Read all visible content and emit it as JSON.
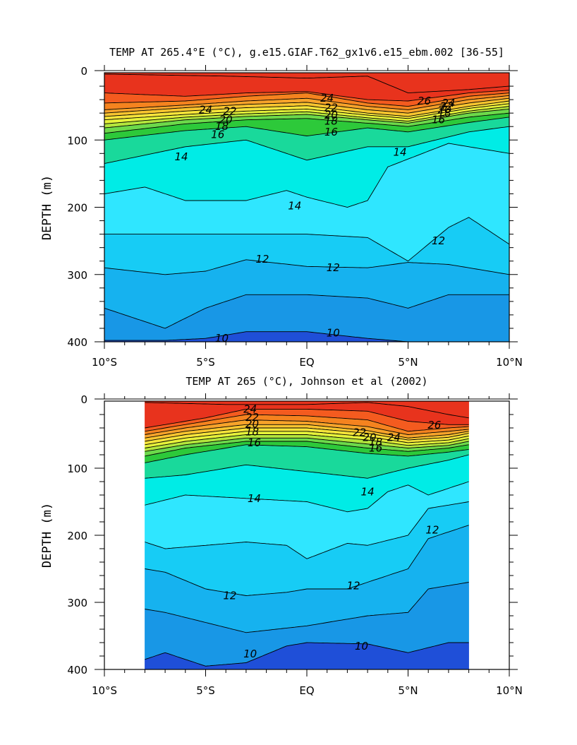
{
  "chart_data": [
    {
      "type": "contour",
      "title": "TEMP AT 265.4°E (°C), g.e15.GIAF.T62_gx1v6.e15_ebm.002 [36-55]",
      "xlabel": "",
      "ylabel": "DEPTH (m)",
      "x_tick_labels": [
        "10°S",
        "5°S",
        "EQ",
        "5°N",
        "10°N"
      ],
      "x_ticks": [
        -10,
        -5,
        0,
        5,
        10
      ],
      "y_tick_labels": [
        "0",
        "100",
        "200",
        "300",
        "400"
      ],
      "y_ticks": [
        0,
        100,
        200,
        300,
        400
      ],
      "xlim": [
        -10,
        10
      ],
      "ylim": [
        400,
        0
      ],
      "data_xlim": [
        -10,
        10
      ],
      "contour_interval": 1,
      "contour_labels": [
        "24",
        "22",
        "20",
        "18",
        "16",
        "14",
        "14",
        "12",
        "12",
        "12",
        "10",
        "10",
        "24",
        "22",
        "20",
        "18",
        "16",
        "26",
        "24",
        "22",
        "20",
        "18",
        "16",
        "14"
      ],
      "isotherms": [
        {
          "value": 26,
          "x": [
            -10,
            -4,
            0,
            3,
            5,
            8,
            10
          ],
          "depth": [
            2,
            5,
            8,
            5,
            30,
            25,
            20
          ]
        },
        {
          "value": 25,
          "x": [
            -10,
            -6,
            -3,
            0,
            3,
            5,
            8,
            10
          ],
          "depth": [
            30,
            35,
            30,
            28,
            40,
            42,
            30,
            26
          ]
        },
        {
          "value": 24,
          "x": [
            -10,
            -6,
            -3,
            0,
            3,
            5,
            8,
            10
          ],
          "depth": [
            45,
            42,
            35,
            30,
            45,
            50,
            35,
            30
          ]
        },
        {
          "value": 23,
          "x": [
            -10,
            -6,
            -3,
            0,
            3,
            5,
            8,
            10
          ],
          "depth": [
            55,
            48,
            42,
            38,
            50,
            55,
            40,
            34
          ]
        },
        {
          "value": 22,
          "x": [
            -10,
            -6,
            -3,
            0,
            3,
            5,
            8,
            10
          ],
          "depth": [
            60,
            52,
            47,
            44,
            55,
            60,
            45,
            38
          ]
        },
        {
          "value": 21,
          "x": [
            -10,
            -6,
            -3,
            0,
            3,
            5,
            8,
            10
          ],
          "depth": [
            65,
            57,
            52,
            49,
            60,
            65,
            50,
            42
          ]
        },
        {
          "value": 20,
          "x": [
            -10,
            -6,
            -3,
            0,
            3,
            5,
            8,
            10
          ],
          "depth": [
            70,
            62,
            57,
            54,
            63,
            68,
            53,
            46
          ]
        },
        {
          "value": 19,
          "x": [
            -10,
            -6,
            -3,
            0,
            3,
            5,
            8,
            10
          ],
          "depth": [
            76,
            66,
            61,
            58,
            67,
            72,
            57,
            50
          ]
        },
        {
          "value": 18,
          "x": [
            -10,
            -6,
            -3,
            0,
            3,
            5,
            8,
            10
          ],
          "depth": [
            82,
            70,
            65,
            62,
            70,
            75,
            60,
            54
          ]
        },
        {
          "value": 17,
          "x": [
            -10,
            -6,
            -3,
            0,
            3,
            5,
            8,
            10
          ],
          "depth": [
            90,
            76,
            70,
            68,
            75,
            80,
            66,
            60
          ]
        },
        {
          "value": 16,
          "x": [
            -10,
            -6,
            -3,
            0,
            3,
            5,
            8,
            10
          ],
          "depth": [
            100,
            86,
            80,
            94,
            82,
            88,
            74,
            66
          ]
        },
        {
          "value": 15,
          "x": [
            -10,
            -6,
            -3,
            0,
            3,
            5,
            8,
            10
          ],
          "depth": [
            135,
            110,
            100,
            130,
            110,
            110,
            88,
            80
          ]
        },
        {
          "value": 14,
          "x": [
            -10,
            -8,
            -6,
            -3,
            -1,
            0,
            2,
            3,
            4,
            7,
            10
          ],
          "depth": [
            180,
            170,
            190,
            190,
            175,
            185,
            200,
            190,
            140,
            105,
            120
          ]
        },
        {
          "value": 13,
          "x": [
            -10,
            -7,
            -5,
            -3,
            0,
            3,
            5,
            7,
            8,
            10
          ],
          "depth": [
            240,
            240,
            240,
            240,
            240,
            245,
            280,
            230,
            215,
            255
          ]
        },
        {
          "value": 12,
          "x": [
            -10,
            -7,
            -5,
            -3,
            0,
            3,
            5,
            7,
            10
          ],
          "depth": [
            290,
            300,
            295,
            278,
            288,
            290,
            282,
            285,
            300
          ]
        },
        {
          "value": 11,
          "x": [
            -10,
            -7,
            -5,
            -3,
            0,
            3,
            5,
            7,
            10
          ],
          "depth": [
            350,
            380,
            350,
            330,
            330,
            335,
            350,
            330,
            330
          ]
        },
        {
          "value": 10,
          "x": [
            -10,
            -7,
            -5,
            -3,
            0,
            3,
            5,
            7,
            10
          ],
          "depth": [
            398,
            398,
            395,
            385,
            385,
            395,
            400,
            400,
            400
          ]
        }
      ]
    },
    {
      "type": "contour",
      "title": "TEMP AT 265 (°C), Johnson et al (2002)",
      "xlabel": "",
      "ylabel": "DEPTH (m)",
      "x_tick_labels": [
        "10°S",
        "5°S",
        "EQ",
        "5°N",
        "10°N"
      ],
      "x_ticks": [
        -10,
        -5,
        0,
        5,
        10
      ],
      "y_tick_labels": [
        "0",
        "100",
        "200",
        "300",
        "400"
      ],
      "y_ticks": [
        0,
        100,
        200,
        300,
        400
      ],
      "xlim": [
        -10,
        10
      ],
      "ylim": [
        400,
        0
      ],
      "data_xlim": [
        -8,
        8
      ],
      "contour_interval": 1,
      "contour_labels": [
        "24",
        "22",
        "20",
        "18",
        "16",
        "14",
        "14",
        "12",
        "12",
        "12",
        "10",
        "10",
        "22",
        "20",
        "18",
        "16",
        "24",
        "26"
      ],
      "isotherms": [
        {
          "value": 26,
          "x": [
            -8,
            -4,
            0,
            2,
            3,
            5,
            7,
            8
          ],
          "depth": [
            2,
            5,
            5,
            3,
            2,
            8,
            20,
            25
          ]
        },
        {
          "value": 25,
          "x": [
            -8,
            -5,
            -3,
            0,
            3,
            5,
            7,
            8
          ],
          "depth": [
            40,
            25,
            12,
            12,
            15,
            30,
            35,
            35
          ]
        },
        {
          "value": 24,
          "x": [
            -8,
            -6,
            -3,
            0,
            3,
            5,
            7,
            8
          ],
          "depth": [
            45,
            35,
            20,
            22,
            28,
            45,
            40,
            38
          ]
        },
        {
          "value": 23,
          "x": [
            -8,
            -6,
            -3,
            0,
            3,
            5,
            7,
            8
          ],
          "depth": [
            50,
            40,
            28,
            30,
            38,
            50,
            45,
            42
          ]
        },
        {
          "value": 22,
          "x": [
            -8,
            -6,
            -3,
            0,
            3,
            5,
            7,
            8
          ],
          "depth": [
            55,
            45,
            35,
            35,
            44,
            55,
            50,
            45
          ]
        },
        {
          "value": 21,
          "x": [
            -8,
            -6,
            -3,
            0,
            3,
            5,
            7,
            8
          ],
          "depth": [
            60,
            50,
            40,
            40,
            48,
            58,
            54,
            48
          ]
        },
        {
          "value": 20,
          "x": [
            -8,
            -6,
            -3,
            0,
            3,
            5,
            7,
            8
          ],
          "depth": [
            65,
            55,
            45,
            45,
            53,
            62,
            58,
            52
          ]
        },
        {
          "value": 19,
          "x": [
            -8,
            -6,
            -3,
            0,
            3,
            5,
            7,
            8
          ],
          "depth": [
            70,
            60,
            50,
            50,
            58,
            66,
            62,
            56
          ]
        },
        {
          "value": 18,
          "x": [
            -8,
            -6,
            -3,
            0,
            3,
            5,
            7,
            8
          ],
          "depth": [
            75,
            65,
            55,
            55,
            64,
            70,
            66,
            60
          ]
        },
        {
          "value": 17,
          "x": [
            -8,
            -6,
            -3,
            0,
            3,
            5,
            7,
            8
          ],
          "depth": [
            82,
            70,
            60,
            60,
            70,
            75,
            70,
            65
          ]
        },
        {
          "value": 16,
          "x": [
            -8,
            -6,
            -3,
            0,
            3,
            5,
            7,
            8
          ],
          "depth": [
            92,
            80,
            65,
            68,
            78,
            82,
            76,
            72
          ]
        },
        {
          "value": 15,
          "x": [
            -8,
            -6,
            -3,
            0,
            3,
            5,
            7,
            8
          ],
          "depth": [
            115,
            110,
            95,
            105,
            115,
            100,
            88,
            80
          ]
        },
        {
          "value": 14,
          "x": [
            -8,
            -6,
            -3,
            0,
            2,
            3,
            4,
            5,
            6,
            8
          ],
          "depth": [
            155,
            140,
            145,
            150,
            165,
            160,
            135,
            125,
            140,
            120
          ]
        },
        {
          "value": 13,
          "x": [
            -8,
            -7,
            -5,
            -3,
            -1,
            0,
            2,
            3,
            5,
            6,
            8
          ],
          "depth": [
            210,
            220,
            215,
            210,
            215,
            235,
            212,
            215,
            200,
            160,
            150
          ]
        },
        {
          "value": 12,
          "x": [
            -8,
            -7,
            -5,
            -3,
            -1,
            0,
            2,
            3,
            5,
            6,
            8
          ],
          "depth": [
            250,
            255,
            280,
            290,
            285,
            280,
            280,
            270,
            250,
            205,
            185
          ]
        },
        {
          "value": 11,
          "x": [
            -8,
            -7,
            -5,
            -3,
            0,
            3,
            5,
            6,
            8
          ],
          "depth": [
            310,
            315,
            330,
            345,
            335,
            320,
            315,
            280,
            270
          ]
        },
        {
          "value": 10,
          "x": [
            -8,
            -7,
            -5,
            -3,
            -1,
            0,
            3,
            5,
            7,
            8
          ],
          "depth": [
            385,
            375,
            395,
            390,
            365,
            360,
            362,
            375,
            360,
            360
          ]
        }
      ]
    }
  ]
}
